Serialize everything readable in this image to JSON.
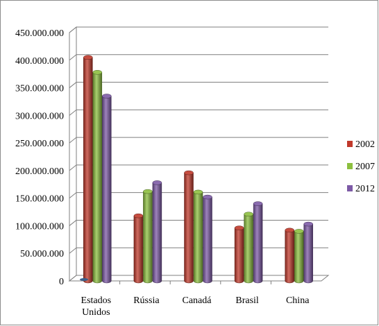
{
  "chart_data": {
    "type": "bar",
    "categories": [
      [
        "Estados",
        "Unidos"
      ],
      [
        "Rússia"
      ],
      [
        "Canadá"
      ],
      [
        "Brasil"
      ],
      [
        "China"
      ]
    ],
    "series": [
      {
        "name": "2002",
        "color": "#c0392b",
        "values": [
          405000000,
          118000000,
          196000000,
          96000000,
          92000000
        ]
      },
      {
        "name": "2007",
        "color": "#8cbf3f",
        "values": [
          378000000,
          162000000,
          161000000,
          121000000,
          90000000
        ]
      },
      {
        "name": "2012",
        "color": "#7d5aa6",
        "values": [
          335000000,
          178000000,
          152000000,
          140000000,
          103000000
        ]
      }
    ],
    "ylim": [
      0,
      450000000
    ],
    "yticks": [
      "0",
      "50.000.000",
      "100.000.000",
      "150.000.000",
      "200.000.000",
      "250.000.000",
      "300.000.000",
      "350.000.000",
      "400.000.000",
      "450.000.000"
    ],
    "grid": true,
    "legend_position": "right",
    "bar_style": "3d-cylinder",
    "title": "",
    "xlabel": "",
    "ylabel": ""
  }
}
